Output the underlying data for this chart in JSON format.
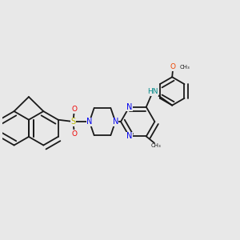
{
  "bg_color": "#e8e8e8",
  "bond_color": "#1a1a1a",
  "bond_width": 1.3,
  "N_color": "#0000ee",
  "O_color": "#ee0000",
  "S_color": "#bbbb00",
  "NH_color": "#008888",
  "methoxy_O_color": "#ee4400",
  "fig_width": 3.0,
  "fig_height": 3.0,
  "dpi": 100,
  "xlim": [
    0.0,
    1.0
  ],
  "ylim": [
    0.15,
    0.9
  ]
}
